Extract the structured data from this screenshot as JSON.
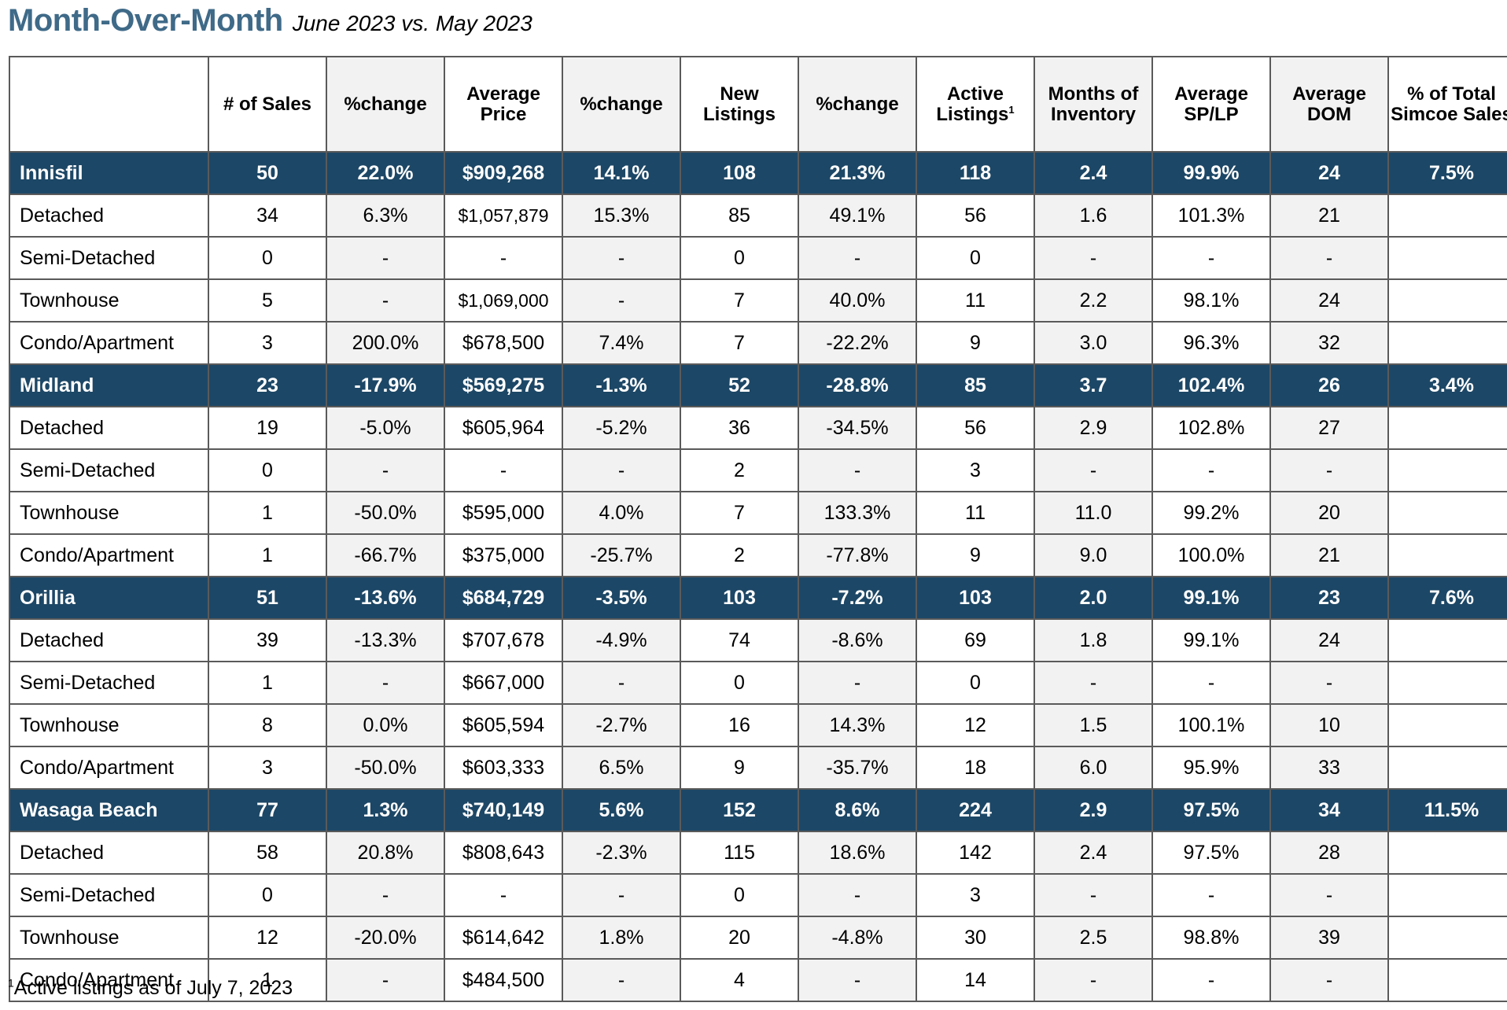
{
  "header": {
    "title": "Month-Over-Month",
    "subtitle": "June 2023 vs. May 2023"
  },
  "columns": [
    "",
    "# of Sales",
    "%change",
    "Average Price",
    "%change",
    "New Listings",
    "%change",
    "Active Listings",
    "Months of Inventory",
    "Average SP/LP",
    "Average DOM",
    "% of Total Simcoe Sales"
  ],
  "active_listings_footnote_marker": "1",
  "groups": [
    {
      "name": "Innisfil",
      "summary": [
        "50",
        "22.0%",
        "$909,268",
        "14.1%",
        "108",
        "21.3%",
        "118",
        "2.4",
        "99.9%",
        "24",
        "7.5%"
      ],
      "rows": [
        {
          "label": "Detached",
          "values": [
            "34",
            "6.3%",
            "$1,057,879",
            "15.3%",
            "85",
            "49.1%",
            "56",
            "1.6",
            "101.3%",
            "21",
            ""
          ]
        },
        {
          "label": "Semi-Detached",
          "values": [
            "0",
            "-",
            "-",
            "-",
            "0",
            "-",
            "0",
            "-",
            "-",
            "-",
            ""
          ]
        },
        {
          "label": "Townhouse",
          "values": [
            "5",
            "-",
            "$1,069,000",
            "-",
            "7",
            "40.0%",
            "11",
            "2.2",
            "98.1%",
            "24",
            ""
          ]
        },
        {
          "label": "Condo/Apartment",
          "values": [
            "3",
            "200.0%",
            "$678,500",
            "7.4%",
            "7",
            "-22.2%",
            "9",
            "3.0",
            "96.3%",
            "32",
            ""
          ]
        }
      ]
    },
    {
      "name": "Midland",
      "summary": [
        "23",
        "-17.9%",
        "$569,275",
        "-1.3%",
        "52",
        "-28.8%",
        "85",
        "3.7",
        "102.4%",
        "26",
        "3.4%"
      ],
      "rows": [
        {
          "label": "Detached",
          "values": [
            "19",
            "-5.0%",
            "$605,964",
            "-5.2%",
            "36",
            "-34.5%",
            "56",
            "2.9",
            "102.8%",
            "27",
            ""
          ]
        },
        {
          "label": "Semi-Detached",
          "values": [
            "0",
            "-",
            "-",
            "-",
            "2",
            "-",
            "3",
            "-",
            "-",
            "-",
            ""
          ]
        },
        {
          "label": "Townhouse",
          "values": [
            "1",
            "-50.0%",
            "$595,000",
            "4.0%",
            "7",
            "133.3%",
            "11",
            "11.0",
            "99.2%",
            "20",
            ""
          ]
        },
        {
          "label": "Condo/Apartment",
          "values": [
            "1",
            "-66.7%",
            "$375,000",
            "-25.7%",
            "2",
            "-77.8%",
            "9",
            "9.0",
            "100.0%",
            "21",
            ""
          ]
        }
      ]
    },
    {
      "name": "Orillia",
      "summary": [
        "51",
        "-13.6%",
        "$684,729",
        "-3.5%",
        "103",
        "-7.2%",
        "103",
        "2.0",
        "99.1%",
        "23",
        "7.6%"
      ],
      "rows": [
        {
          "label": "Detached",
          "values": [
            "39",
            "-13.3%",
            "$707,678",
            "-4.9%",
            "74",
            "-8.6%",
            "69",
            "1.8",
            "99.1%",
            "24",
            ""
          ]
        },
        {
          "label": "Semi-Detached",
          "values": [
            "1",
            "-",
            "$667,000",
            "-",
            "0",
            "-",
            "0",
            "-",
            "-",
            "-",
            ""
          ]
        },
        {
          "label": "Townhouse",
          "values": [
            "8",
            "0.0%",
            "$605,594",
            "-2.7%",
            "16",
            "14.3%",
            "12",
            "1.5",
            "100.1%",
            "10",
            ""
          ]
        },
        {
          "label": "Condo/Apartment",
          "values": [
            "3",
            "-50.0%",
            "$603,333",
            "6.5%",
            "9",
            "-35.7%",
            "18",
            "6.0",
            "95.9%",
            "33",
            ""
          ]
        }
      ]
    },
    {
      "name": "Wasaga Beach",
      "summary": [
        "77",
        "1.3%",
        "$740,149",
        "5.6%",
        "152",
        "8.6%",
        "224",
        "2.9",
        "97.5%",
        "34",
        "11.5%"
      ],
      "rows": [
        {
          "label": "Detached",
          "values": [
            "58",
            "20.8%",
            "$808,643",
            "-2.3%",
            "115",
            "18.6%",
            "142",
            "2.4",
            "97.5%",
            "28",
            ""
          ]
        },
        {
          "label": "Semi-Detached",
          "values": [
            "0",
            "-",
            "-",
            "-",
            "0",
            "-",
            "3",
            "-",
            "-",
            "-",
            ""
          ]
        },
        {
          "label": "Townhouse",
          "values": [
            "12",
            "-20.0%",
            "$614,642",
            "1.8%",
            "20",
            "-4.8%",
            "30",
            "2.5",
            "98.8%",
            "39",
            ""
          ]
        },
        {
          "label": "Condo/Apartment",
          "values": [
            "1",
            "-",
            "$484,500",
            "-",
            "4",
            "-",
            "14",
            "-",
            "-",
            "-",
            ""
          ]
        }
      ]
    }
  ],
  "footnote": {
    "marker": "1",
    "text": "Active listings as of July 7, 2023"
  },
  "colors": {
    "title": "#3f6a88",
    "group_row_bg": "#1d4766",
    "group_row_text": "#ffffff",
    "shaded_column": "#f2f2f2",
    "border": "#5a5a5a"
  }
}
